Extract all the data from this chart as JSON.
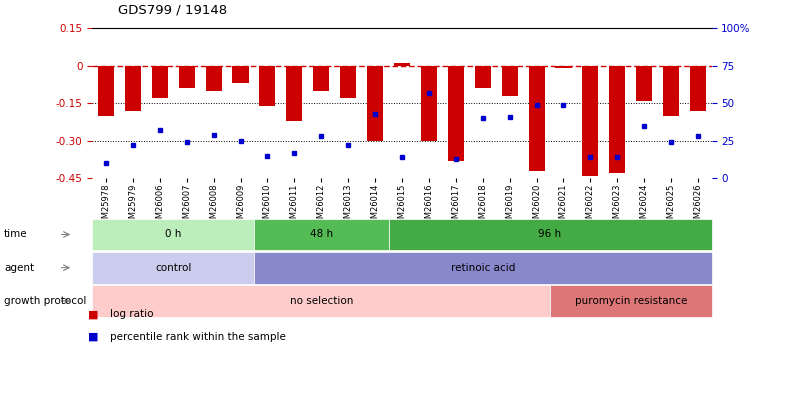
{
  "title": "GDS799 / 19148",
  "samples": [
    "GSM25978",
    "GSM25979",
    "GSM26006",
    "GSM26007",
    "GSM26008",
    "GSM26009",
    "GSM26010",
    "GSM26011",
    "GSM26012",
    "GSM26013",
    "GSM26014",
    "GSM26015",
    "GSM26016",
    "GSM26017",
    "GSM26018",
    "GSM26019",
    "GSM26020",
    "GSM26021",
    "GSM26022",
    "GSM26023",
    "GSM26024",
    "GSM26025",
    "GSM26026"
  ],
  "log_ratio": [
    -0.2,
    -0.18,
    -0.13,
    -0.09,
    -0.1,
    -0.07,
    -0.16,
    -0.22,
    -0.1,
    -0.13,
    -0.3,
    0.01,
    -0.3,
    -0.38,
    -0.09,
    -0.12,
    -0.42,
    -0.01,
    -0.44,
    -0.43,
    -0.14,
    -0.2,
    -0.18
  ],
  "percentile": [
    10,
    22,
    32,
    24,
    29,
    25,
    15,
    17,
    28,
    22,
    43,
    14,
    57,
    13,
    40,
    41,
    49,
    49,
    14,
    14,
    35,
    24,
    28
  ],
  "ylim_left": [
    -0.45,
    0.15
  ],
  "ylim_right": [
    0,
    100
  ],
  "yticks_left": [
    -0.45,
    -0.3,
    -0.15,
    0.0,
    0.15
  ],
  "ytick_labels_left": [
    "-0.45",
    "-0.30",
    "-0.15",
    "0",
    "0.15"
  ],
  "yticks_right": [
    0,
    25,
    50,
    75,
    100
  ],
  "ytick_labels_right": [
    "0",
    "25",
    "50",
    "75",
    "100%"
  ],
  "bar_color": "#cc0000",
  "dot_color": "#0000cc",
  "hline_color": "#cc0000",
  "hline_y": 0.0,
  "dotted_hlines": [
    -0.15,
    -0.3
  ],
  "time_groups": [
    {
      "label": "0 h",
      "start": 0,
      "end": 6,
      "color": "#bbeebb"
    },
    {
      "label": "48 h",
      "start": 6,
      "end": 11,
      "color": "#55bb55"
    },
    {
      "label": "96 h",
      "start": 11,
      "end": 23,
      "color": "#44aa44"
    }
  ],
  "agent_groups": [
    {
      "label": "control",
      "start": 0,
      "end": 6,
      "color": "#ccccee"
    },
    {
      "label": "retinoic acid",
      "start": 6,
      "end": 23,
      "color": "#8888cc"
    }
  ],
  "growth_groups": [
    {
      "label": "no selection",
      "start": 0,
      "end": 17,
      "color": "#ffcccc"
    },
    {
      "label": "puromycin resistance",
      "start": 17,
      "end": 23,
      "color": "#dd7777"
    }
  ],
  "legend_log_ratio": "log ratio",
  "legend_percentile": "percentile rank within the sample",
  "bar_width": 0.6,
  "background_color": "#ffffff"
}
